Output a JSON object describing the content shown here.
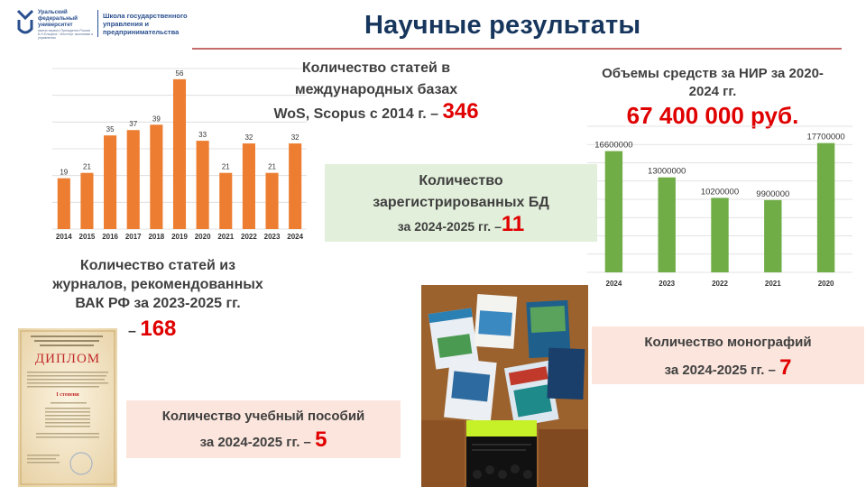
{
  "header": {
    "title": "Научные результаты",
    "logo_university": "Уральский федеральный университет",
    "logo_university_sub": "имени первого Президента России Б.Н.Ельцина · Институт экономики и управления",
    "logo_school": "Школа государственного управления и предпринимательства"
  },
  "wos": {
    "line1": "Количество статей в",
    "line2": "международных базах",
    "line3": "WoS, Scopus с 2014 г. –",
    "value": "346"
  },
  "nir": {
    "line1": "Объемы средств за НИР за 2020-",
    "line2": "2024 гг.",
    "value": "67 400 000 руб."
  },
  "db_card": {
    "line1": "Количество",
    "line2": "зарегистрированных БД",
    "line3": "за 2024-2025 гг. –",
    "value": "11"
  },
  "vak": {
    "line1": "Количество статей из",
    "line2": "журналов, рекомендованных",
    "line3": "ВАК РФ за 2023-2025 гг.",
    "dash": "–",
    "value": "168"
  },
  "mono_card": {
    "line1": "Количество монографий",
    "line2": "за 2024-2025 гг. –",
    "value": "7"
  },
  "textbook_card": {
    "line1": "Количество учебный пособий",
    "line2": "за 2024-2025 гг. –",
    "value": "5"
  },
  "diploma": {
    "heading": "ДИПЛОМ",
    "degree": "I степени"
  },
  "colors": {
    "orange_bar": "#ed7d31",
    "green_bar": "#70ad47",
    "red_accent": "#e00000",
    "title_blue": "#17365d"
  },
  "chart_data": [
    {
      "type": "bar",
      "categories": [
        "2014",
        "2015",
        "2016",
        "2017",
        "2018",
        "2019",
        "2020",
        "2021",
        "2022",
        "2023",
        "2024"
      ],
      "values": [
        19,
        21,
        35,
        37,
        39,
        56,
        33,
        21,
        32,
        21,
        32
      ],
      "title": "",
      "xlabel": "",
      "ylabel": "",
      "ylim": [
        0,
        60
      ],
      "grid": true,
      "color": "#ed7d31"
    },
    {
      "type": "bar",
      "categories": [
        "2024",
        "2023",
        "2022",
        "2021",
        "2020"
      ],
      "values": [
        16600000,
        13000000,
        10200000,
        9900000,
        17700000
      ],
      "title": "",
      "xlabel": "",
      "ylabel": "",
      "ylim": [
        0,
        20000000
      ],
      "grid": true,
      "color": "#70ad47"
    }
  ]
}
